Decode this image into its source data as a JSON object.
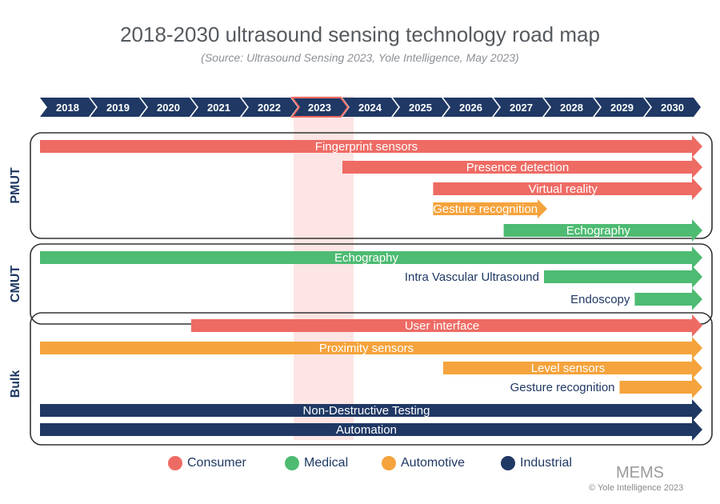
{
  "title": "2018-2030 ultrasound sensing technology road map",
  "subtitle": "(Source: Ultrasound Sensing 2023, Yole Intelligence, May 2023)",
  "colors": {
    "Consumer": "#ee6b64",
    "Medical": "#4dbb72",
    "Automotive": "#f5a33c",
    "Industrial": "#1f3864",
    "highlight": "#fbe1df",
    "frame": "#333333",
    "timeline": "#1f3864"
  },
  "chart_data": {
    "type": "timeline",
    "years": [
      "2018",
      "2019",
      "2020",
      "2021",
      "2022",
      "2023",
      "2024",
      "2025",
      "2026",
      "2027",
      "2028",
      "2029",
      "2030"
    ],
    "highlight_year": "2023",
    "groups": [
      {
        "name": "PMUT",
        "items": [
          {
            "label": "Fingerprint sensors",
            "category": "Consumer",
            "start": 2018,
            "end": 2030,
            "label_side": "inside"
          },
          {
            "label": "Presence detection",
            "category": "Consumer",
            "start": 2024,
            "end": 2030,
            "label_side": "inside"
          },
          {
            "label": "Virtual reality",
            "category": "Consumer",
            "start": 2025.8,
            "end": 2030,
            "label_side": "inside"
          },
          {
            "label": "Gesture recognition",
            "category": "Automotive",
            "start": 2025.8,
            "end": 2028,
            "label_side": "inside"
          },
          {
            "label": "Echography",
            "category": "Medical",
            "start": 2027.2,
            "end": 2030,
            "label_side": "inside"
          }
        ]
      },
      {
        "name": "CMUT",
        "items": [
          {
            "label": "Echography",
            "category": "Medical",
            "start": 2018,
            "end": 2030,
            "label_side": "inside"
          },
          {
            "label": "Intra Vascular Ultrasound",
            "category": "Medical",
            "start": 2028,
            "end": 2030,
            "label_side": "left"
          },
          {
            "label": "Endoscopy",
            "category": "Medical",
            "start": 2029.8,
            "end": 2030,
            "label_side": "left"
          }
        ]
      },
      {
        "name": "Bulk",
        "items": [
          {
            "label": "User interface",
            "category": "Consumer",
            "start": 2021,
            "end": 2030,
            "label_side": "inside"
          },
          {
            "label": "Proximity sensors",
            "category": "Automotive",
            "start": 2018,
            "end": 2030,
            "label_side": "inside"
          },
          {
            "label": "Level sensors",
            "category": "Automotive",
            "start": 2026,
            "end": 2030,
            "label_side": "inside"
          },
          {
            "label": "Gesture recognition",
            "category": "Automotive",
            "start": 2029.5,
            "end": 2030,
            "label_side": "left"
          },
          {
            "label": "Non-Destructive Testing",
            "category": "Industrial",
            "start": 2018,
            "end": 2030,
            "label_side": "inside"
          },
          {
            "label": "Automation",
            "category": "Industrial",
            "start": 2018,
            "end": 2030,
            "label_side": "inside"
          }
        ]
      }
    ],
    "legend": [
      "Consumer",
      "Medical",
      "Automotive",
      "Industrial"
    ]
  },
  "watermark": "MEMS",
  "copyright": "© Yole Intelligence 2023"
}
